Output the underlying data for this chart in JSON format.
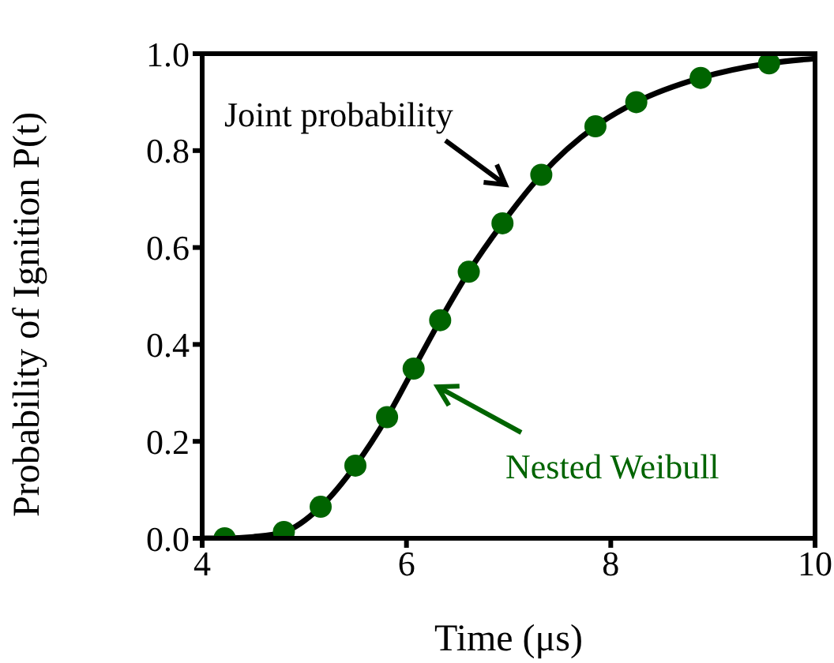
{
  "chart_data": {
    "type": "line",
    "xlabel": "Time (μs)",
    "ylabel": "Probability of Ignition P(t)",
    "xlim": [
      4,
      10
    ],
    "xticks": [
      4,
      6,
      8,
      10
    ],
    "ylim": [
      0,
      1
    ],
    "yticks": [
      {
        "value": 0,
        "label": "0.0"
      },
      {
        "value": 0.2,
        "label": "0.2"
      },
      {
        "value": 0.4,
        "label": "0.4"
      },
      {
        "value": 0.6,
        "label": "0.6"
      },
      {
        "value": 0.8,
        "label": "0.8"
      },
      {
        "value": 1,
        "label": "1.0"
      }
    ],
    "series": [
      {
        "name": "Joint probability",
        "color": "#000000",
        "line_style": "solid",
        "x": [
          4.0,
          4.22,
          4.5,
          4.8,
          5.16,
          5.5,
          5.81,
          6.07,
          6.33,
          6.61,
          6.94,
          7.32,
          7.85,
          8.25,
          8.88,
          9.55,
          10
        ],
        "values": [
          0,
          0,
          0.003,
          0.013,
          0.065,
          0.15,
          0.25,
          0.35,
          0.45,
          0.55,
          0.65,
          0.75,
          0.85,
          0.9,
          0.95,
          0.98,
          0.99
        ]
      },
      {
        "name": "Nested Weibull",
        "type": "scatter",
        "color": "#006400",
        "marker": "circle",
        "x": [
          4.22,
          4.8,
          5.16,
          5.5,
          5.81,
          6.07,
          6.33,
          6.61,
          6.94,
          7.32,
          7.85,
          8.25,
          8.88,
          9.55
        ],
        "values": [
          0,
          0.013,
          0.065,
          0.15,
          0.25,
          0.35,
          0.45,
          0.55,
          0.65,
          0.75,
          0.85,
          0.9,
          0.95,
          0.98
        ]
      }
    ]
  }
}
